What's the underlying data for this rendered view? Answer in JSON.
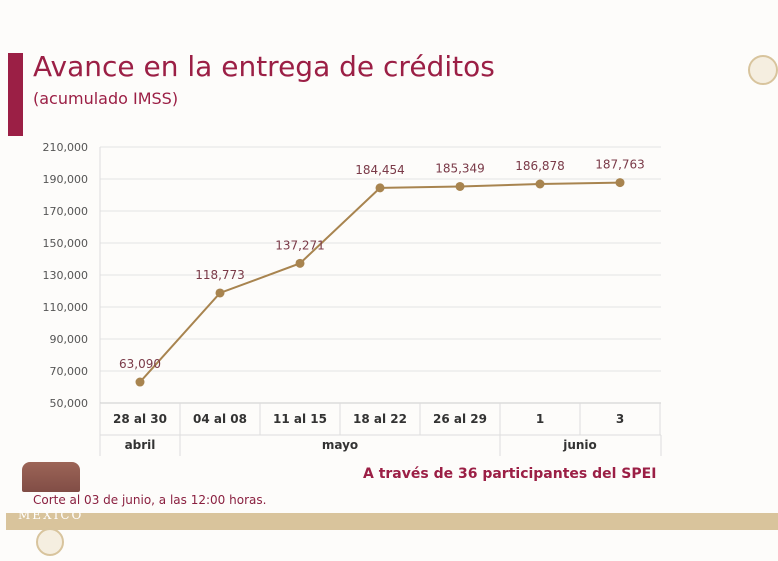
{
  "header": {
    "title": "Avance en la entrega de créditos",
    "subtitle": "(acumulado IMSS)"
  },
  "chart_data": {
    "type": "line",
    "title": "Avance en la entrega de créditos",
    "subtitle": "(acumulado IMSS)",
    "categories": [
      "28 al 30",
      "04 al 08",
      "11 al 15",
      "18 al 22",
      "26 al 29",
      "1",
      "3"
    ],
    "groups": [
      {
        "label": "abril",
        "span": 1
      },
      {
        "label": "mayo",
        "span": 4
      },
      {
        "label": "junio",
        "span": 2
      }
    ],
    "values": [
      63090,
      118773,
      137271,
      184454,
      185349,
      186878,
      187763
    ],
    "data_labels": [
      "63,090",
      "118,773",
      "137,271",
      "184,454",
      "185,349",
      "186,878",
      "187,763"
    ],
    "ylim": [
      50000,
      210000
    ],
    "yticks": [
      "50,000",
      "70,000",
      "90,000",
      "110,000",
      "130,000",
      "150,000",
      "170,000",
      "190,000",
      "210,000"
    ],
    "grid": true,
    "line_color": "#a8844f"
  },
  "footer": {
    "participants": "A través de 36 participantes del SPEI",
    "note": "Corte al 03 de junio, a las 12:00 horas.",
    "logo_text": "MÉXICO"
  }
}
